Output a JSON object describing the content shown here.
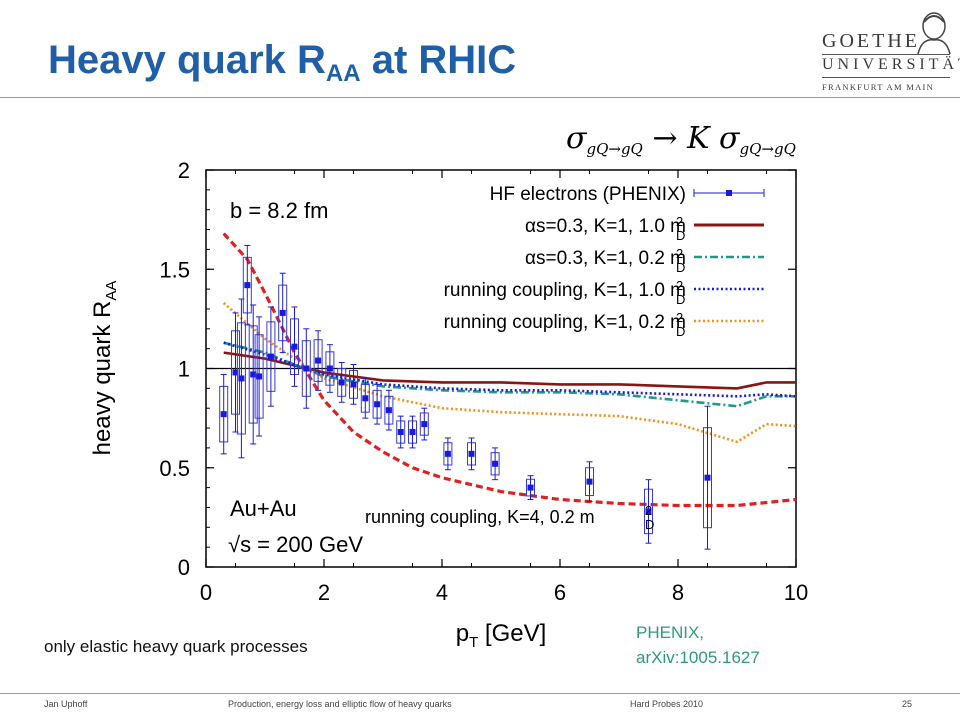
{
  "slide": {
    "title_main": "Heavy quark R",
    "title_sub": "AA",
    "title_tail": " at RHIC",
    "note": "only elastic heavy quark processes",
    "phenix_ref_line1": "PHENIX,",
    "phenix_ref_line2": "arXiv:1005.1627",
    "logo": {
      "line1": "GOETHE",
      "line2": "UNIVERSITÄT",
      "line3": "FRANKFURT AM MAIN"
    },
    "footer": {
      "author": "Jan Uphoff",
      "talk": "Production, energy loss and elliptic flow of heavy quarks",
      "conference": "Hard Probes 2010",
      "page": "25"
    }
  },
  "chart_data": {
    "type": "line",
    "formula": "σgQ→gQ → K σgQ→gQ",
    "xlabel": "pT [GeV]",
    "ylabel": "heavy quark RAA",
    "xlim": [
      0,
      10
    ],
    "ylim": [
      0,
      2
    ],
    "xticks": [
      "0",
      "2",
      "4",
      "6",
      "8",
      "10"
    ],
    "yticks": [
      "0",
      "0.5",
      "1",
      "1.5",
      "2"
    ],
    "reference_line_y": 1,
    "annotations": {
      "impact": "b = 8.2 fm",
      "system": "Au+Au",
      "energy": "√s = 200 GeV",
      "k4_label": "running coupling, K=4, 0.2 m"
    },
    "legend_position": "top-right",
    "series": [
      {
        "name": "HF electrons  (PHENIX)",
        "type": "data",
        "color": "#1a1adc",
        "points": [
          {
            "x": 0.3,
            "y": 0.77,
            "err": 0.2
          },
          {
            "x": 0.5,
            "y": 0.98,
            "err": 0.3
          },
          {
            "x": 0.6,
            "y": 0.95,
            "err": 0.4
          },
          {
            "x": 0.7,
            "y": 1.42,
            "err": 0.2
          },
          {
            "x": 0.8,
            "y": 0.97,
            "err": 0.35
          },
          {
            "x": 0.9,
            "y": 0.96,
            "err": 0.3
          },
          {
            "x": 1.1,
            "y": 1.06,
            "err": 0.25
          },
          {
            "x": 1.3,
            "y": 1.28,
            "err": 0.2
          },
          {
            "x": 1.5,
            "y": 1.11,
            "err": 0.2
          },
          {
            "x": 1.7,
            "y": 1.0,
            "err": 0.2
          },
          {
            "x": 1.9,
            "y": 1.04,
            "err": 0.15
          },
          {
            "x": 2.1,
            "y": 1.0,
            "err": 0.12
          },
          {
            "x": 2.3,
            "y": 0.93,
            "err": 0.1
          },
          {
            "x": 2.5,
            "y": 0.92,
            "err": 0.1
          },
          {
            "x": 2.7,
            "y": 0.85,
            "err": 0.1
          },
          {
            "x": 2.9,
            "y": 0.82,
            "err": 0.1
          },
          {
            "x": 3.1,
            "y": 0.79,
            "err": 0.1
          },
          {
            "x": 3.3,
            "y": 0.68,
            "err": 0.08
          },
          {
            "x": 3.5,
            "y": 0.68,
            "err": 0.08
          },
          {
            "x": 3.7,
            "y": 0.72,
            "err": 0.08
          },
          {
            "x": 4.1,
            "y": 0.57,
            "err": 0.08
          },
          {
            "x": 4.5,
            "y": 0.57,
            "err": 0.08
          },
          {
            "x": 4.9,
            "y": 0.52,
            "err": 0.08
          },
          {
            "x": 5.5,
            "y": 0.4,
            "err": 0.06
          },
          {
            "x": 6.5,
            "y": 0.43,
            "err": 0.1
          },
          {
            "x": 7.5,
            "y": 0.28,
            "err": 0.16
          },
          {
            "x": 8.5,
            "y": 0.45,
            "err": 0.36
          }
        ]
      },
      {
        "name": "αs=0.3, K=1, 1.0 m",
        "suffix": "D",
        "style": "solid",
        "color": "#8b1414",
        "x": [
          0.3,
          1,
          2,
          3,
          4,
          5,
          6,
          7,
          8,
          9,
          9.5,
          10
        ],
        "y": [
          1.08,
          1.05,
          0.98,
          0.94,
          0.93,
          0.93,
          0.92,
          0.92,
          0.91,
          0.9,
          0.93,
          0.93
        ]
      },
      {
        "name": "αs=0.3, K=1, 0.2 m",
        "suffix": "D",
        "style": "dashdot",
        "color": "#1f9a8a",
        "x": [
          0.3,
          1,
          2,
          3,
          4,
          5,
          6,
          7,
          8,
          9,
          9.5,
          10
        ],
        "y": [
          1.13,
          1.08,
          0.96,
          0.91,
          0.89,
          0.88,
          0.88,
          0.87,
          0.84,
          0.81,
          0.86,
          0.86
        ]
      },
      {
        "name": "running coupling, K=1, 1.0 m",
        "suffix": "D",
        "style": "dotted",
        "color": "#1a1adc",
        "x": [
          0.3,
          1,
          2,
          3,
          4,
          5,
          6,
          7,
          8,
          9,
          9.5,
          10
        ],
        "y": [
          1.13,
          1.07,
          0.97,
          0.92,
          0.9,
          0.89,
          0.89,
          0.88,
          0.87,
          0.86,
          0.87,
          0.86
        ]
      },
      {
        "name": "running coupling, K=1, 0.2 m",
        "suffix": "D",
        "style": "dotted",
        "color": "#f09020",
        "x": [
          0.3,
          1,
          2,
          3,
          4,
          5,
          6,
          7,
          8,
          9,
          9.5,
          10
        ],
        "y": [
          1.33,
          1.15,
          0.95,
          0.86,
          0.8,
          0.78,
          0.77,
          0.76,
          0.72,
          0.63,
          0.72,
          0.71
        ]
      },
      {
        "name": "running coupling, K=4, 0.2 m",
        "style": "dashed",
        "color": "#e02020",
        "in_legend": false,
        "x": [
          0.3,
          0.7,
          1,
          1.5,
          2,
          2.5,
          3,
          3.5,
          4,
          5,
          6,
          7,
          8,
          9,
          10
        ],
        "y": [
          1.68,
          1.55,
          1.38,
          1.08,
          0.84,
          0.68,
          0.58,
          0.5,
          0.45,
          0.38,
          0.34,
          0.32,
          0.31,
          0.31,
          0.34
        ]
      }
    ]
  }
}
